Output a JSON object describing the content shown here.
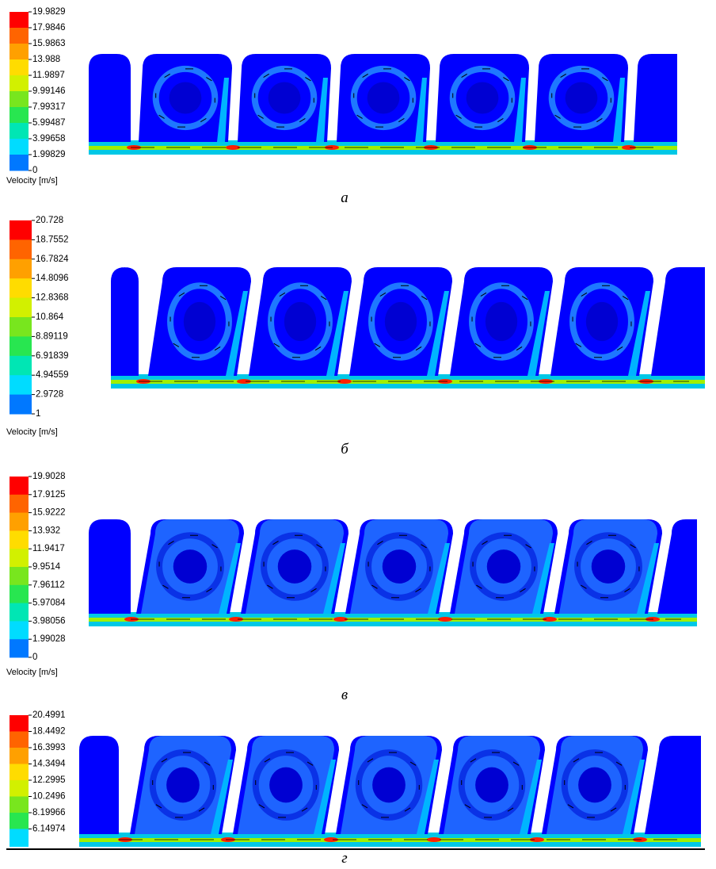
{
  "panels": [
    {
      "legend": {
        "ticks": [
          "19.9829",
          "17.9846",
          "15.9863",
          "13.988",
          "11.9897",
          "9.99146",
          "7.99317",
          "5.99487",
          "3.99658",
          "1.99829",
          "0"
        ],
        "title": "Velocity [m/s]"
      },
      "caption": "а"
    },
    {
      "legend": {
        "ticks": [
          "20.728",
          "18.7552",
          "16.7824",
          "14.8096",
          "12.8368",
          "10.864",
          "8.89119",
          "6.91839",
          "4.94559",
          "2.9728",
          "1"
        ],
        "title": "Velocity [m/s]"
      },
      "caption": "б"
    },
    {
      "legend": {
        "ticks": [
          "19.9028",
          "17.9125",
          "15.9222",
          "13.932",
          "11.9417",
          "9.9514",
          "7.96112",
          "5.97084",
          "3.98056",
          "1.99028",
          "0"
        ],
        "title": "Velocity [m/s]"
      },
      "caption": "в"
    },
    {
      "legend": {
        "ticks": [
          "20.4991",
          "18.4492",
          "16.3993",
          "14.3494",
          "12.2995",
          "10.2496",
          "8.19966",
          "6.14974"
        ]
      },
      "caption": "г"
    }
  ]
}
